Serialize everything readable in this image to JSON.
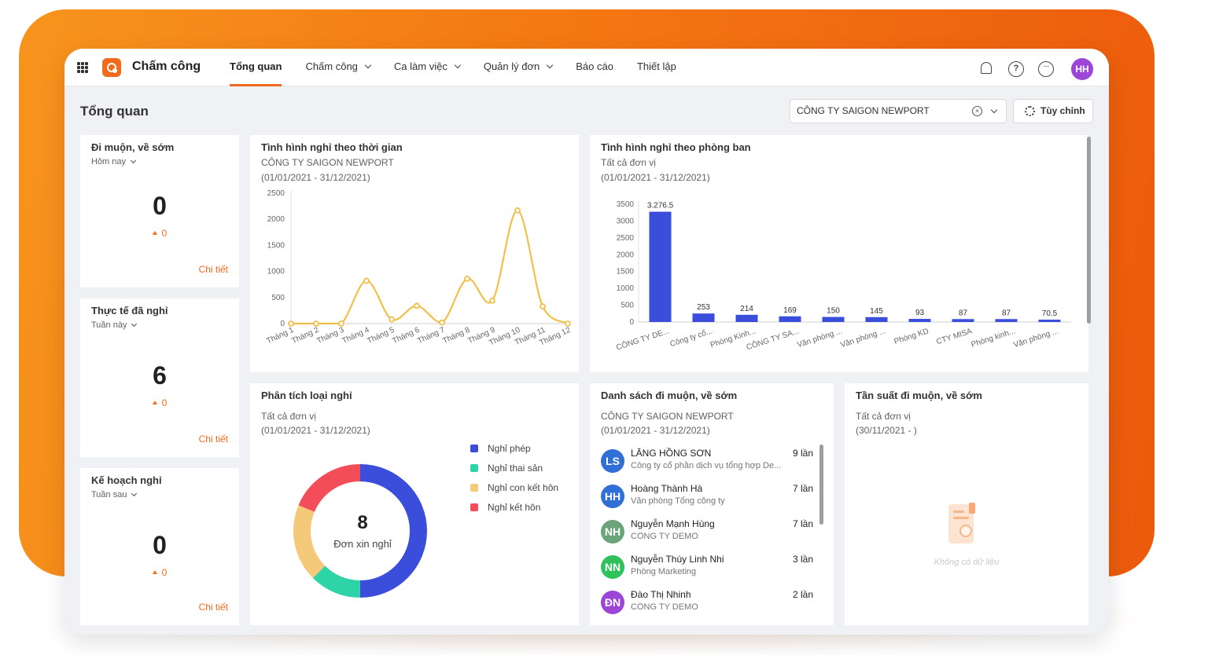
{
  "app": {
    "name": "Chấm công",
    "user_initials": "HH",
    "accent": "#f26a1b"
  },
  "nav": [
    {
      "label": "Tổng quan",
      "active": true,
      "dropdown": false
    },
    {
      "label": "Chấm công",
      "active": false,
      "dropdown": true
    },
    {
      "label": "Ca làm việc",
      "active": false,
      "dropdown": true
    },
    {
      "label": "Quản lý đơn",
      "active": false,
      "dropdown": true
    },
    {
      "label": "Báo cáo",
      "active": false,
      "dropdown": false
    },
    {
      "label": "Thiết lập",
      "active": false,
      "dropdown": false
    }
  ],
  "page": {
    "title": "Tổng quan",
    "company_filter": "CÔNG TY SAIGON NEWPORT",
    "customize_label": "Tùy chỉnh"
  },
  "stats": {
    "late_early": {
      "title": "Đi muộn, về sớm",
      "period": "Hôm nay",
      "value": "0",
      "delta": "0",
      "detail": "Chi tiết"
    },
    "actual_leave": {
      "title": "Thực tế đã nghỉ",
      "period": "Tuần này",
      "value": "6",
      "delta": "0",
      "detail": "Chi tiết"
    },
    "planned_leave": {
      "title": "Kế hoạch nghỉ",
      "period": "Tuần sau",
      "value": "0",
      "delta": "0",
      "detail": "Chi tiết"
    }
  },
  "leave_time": {
    "title": "Tình hình nghỉ theo thời gian",
    "subtitle": "CÔNG TY SAIGON NEWPORT",
    "range": "(01/01/2021 - 31/12/2021)"
  },
  "leave_dept": {
    "title": "Tình hình nghỉ theo phòng ban",
    "subtitle": "Tất cả đơn vị",
    "range": "(01/01/2021 - 31/12/2021)"
  },
  "leave_type": {
    "title": "Phân tích loại nghỉ",
    "subtitle": "Tất cả đơn vị",
    "range": "(01/01/2021 - 31/12/2021)",
    "center_value": "8",
    "center_label": "Đơn xin nghỉ"
  },
  "late_list": {
    "title": "Danh sách đi muộn, về sớm",
    "subtitle": "CÔNG TY SAIGON NEWPORT",
    "range": "(01/01/2021 - 31/12/2021)",
    "items": [
      {
        "initials": "LS",
        "name": "LĂNG HỒNG SƠN",
        "dept": "Công ty cổ phần dịch vụ tổng hợp De...",
        "count": "9 lần",
        "color": "#2f6fd6"
      },
      {
        "initials": "HH",
        "name": "Hoàng Thành Hà",
        "dept": "Văn phòng Tổng công ty",
        "count": "7 lần",
        "color": "#2f6fd6"
      },
      {
        "initials": "NH",
        "name": "Nguyễn Mạnh Hùng",
        "dept": "CÔNG TY DEMO",
        "count": "7 lần",
        "color": "#6ba37a"
      },
      {
        "initials": "NN",
        "name": "Nguyễn Thùy Linh Nhi",
        "dept": "Phòng Marketing",
        "count": "3 lần",
        "color": "#2fc25a"
      },
      {
        "initials": "ĐN",
        "name": "Đào Thị Nhinh",
        "dept": "CÔNG TY DEMO",
        "count": "2 lần",
        "color": "#9c45d6"
      }
    ]
  },
  "frequency": {
    "title": "Tần suất đi muộn, về sớm",
    "subtitle": "Tất cả đơn vị",
    "range": "(30/11/2021 - )",
    "empty_text": "Không có dữ liệu"
  },
  "chart_data": [
    {
      "type": "line",
      "categories": [
        "Tháng 1",
        "Tháng 2",
        "Tháng 3",
        "Tháng 4",
        "Tháng 5",
        "Tháng 6",
        "Tháng 7",
        "Tháng 8",
        "Tháng 9",
        "Tháng 10",
        "Tháng 11",
        "Tháng 12"
      ],
      "values": [
        0,
        0,
        0,
        820,
        80,
        340,
        20,
        860,
        440,
        2170,
        330,
        0
      ],
      "yticks": [
        0,
        500,
        1000,
        1500,
        2000,
        2500
      ],
      "ylim": [
        0,
        2500
      ],
      "color": "#f2c04a"
    },
    {
      "type": "bar",
      "categories": [
        "CÔNG TY DE...",
        "Công ty cổ...",
        "Phòng Kinh...",
        "CÔNG TY SA...",
        "Văn phòng ...",
        "Văn phòng ...",
        "Phòng KD",
        "CTY MISA",
        "Phòng kinh...",
        "Văn phòng ..."
      ],
      "values": [
        3276.5,
        253,
        214,
        169,
        150,
        145,
        93,
        87,
        87,
        70.5
      ],
      "labels": [
        "3.276.5",
        "253",
        "214",
        "169",
        "150",
        "145",
        "93",
        "87",
        "87",
        "70.5"
      ],
      "yticks": [
        0,
        500,
        1000,
        1500,
        2000,
        2500,
        3000,
        3500
      ],
      "ylim": [
        0,
        3500
      ],
      "color": "#3b4ddb"
    },
    {
      "type": "pie",
      "series": [
        {
          "name": "Nghỉ phép",
          "value": 4,
          "color": "#3b4ddb"
        },
        {
          "name": "Nghỉ thai sản",
          "value": 1,
          "color": "#2dd4a8"
        },
        {
          "name": "Nghỉ con kết hôn",
          "value": 1.5,
          "color": "#f5c97a"
        },
        {
          "name": "Nghỉ kết hôn",
          "value": 1.5,
          "color": "#f44d5a"
        }
      ]
    }
  ]
}
